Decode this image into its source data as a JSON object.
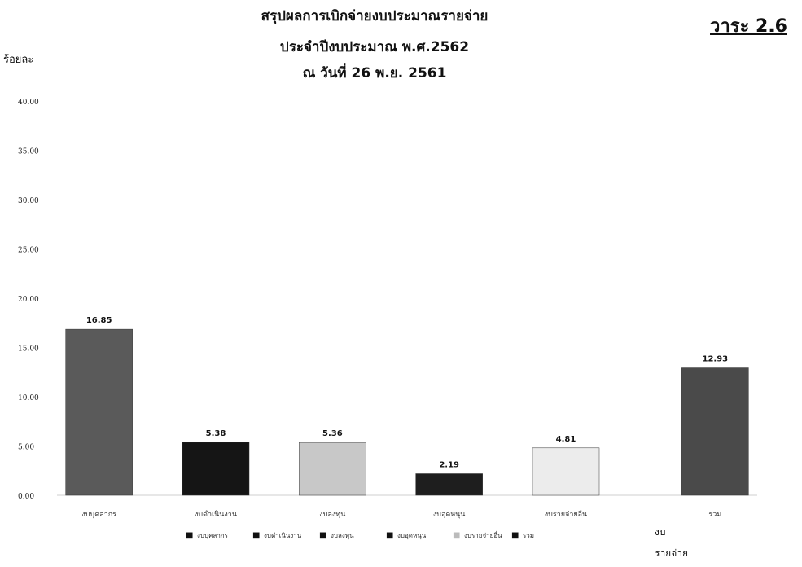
{
  "header": {
    "title_line1": "สรุปผลการเบิกจ่ายงบประมาณรายจ่าย",
    "title_line2": "ประจำปีงบประมาณ พ.ศ.2562",
    "title_line3": "ณ วันที่ 26 พ.ย. 2561",
    "agenda": "วาระ 2.6"
  },
  "footnote": {
    "line1": "งบ",
    "line2": "รายจ่าย"
  },
  "chart_data": {
    "type": "bar",
    "ylabel": "ร้อยละ",
    "ylim": [
      0,
      40
    ],
    "yticks": [
      "0.00",
      "5.00",
      "10.00",
      "15.00",
      "20.00",
      "25.00",
      "30.00",
      "35.00",
      "40.00"
    ],
    "categories": [
      "งบบุคลากร",
      "งบดำเนินงาน",
      "งบลงทุน",
      "งบอุดหนุน",
      "งบรายจ่ายอื่น",
      "รวม"
    ],
    "values": [
      16.85,
      5.38,
      5.36,
      2.19,
      4.81,
      12.93
    ],
    "value_labels": [
      "16.85",
      "5.38",
      "5.36",
      "2.19",
      "4.81",
      "12.93"
    ],
    "colors": [
      "#5a5a5a",
      "#151515",
      "#c8c8c8",
      "#1e1e1e",
      "#ececec",
      "#4a4a4a"
    ],
    "legend": [
      "งบบุคลากร",
      "งบดำเนินงาน",
      "งบลงทุน",
      "งบอุดหนุน",
      "งบรายจ่ายอื่น",
      "รวม"
    ],
    "legend_markers": [
      "■",
      "■",
      "■",
      "■",
      "■",
      "■"
    ],
    "legend_position": "bottom",
    "grid": false
  }
}
